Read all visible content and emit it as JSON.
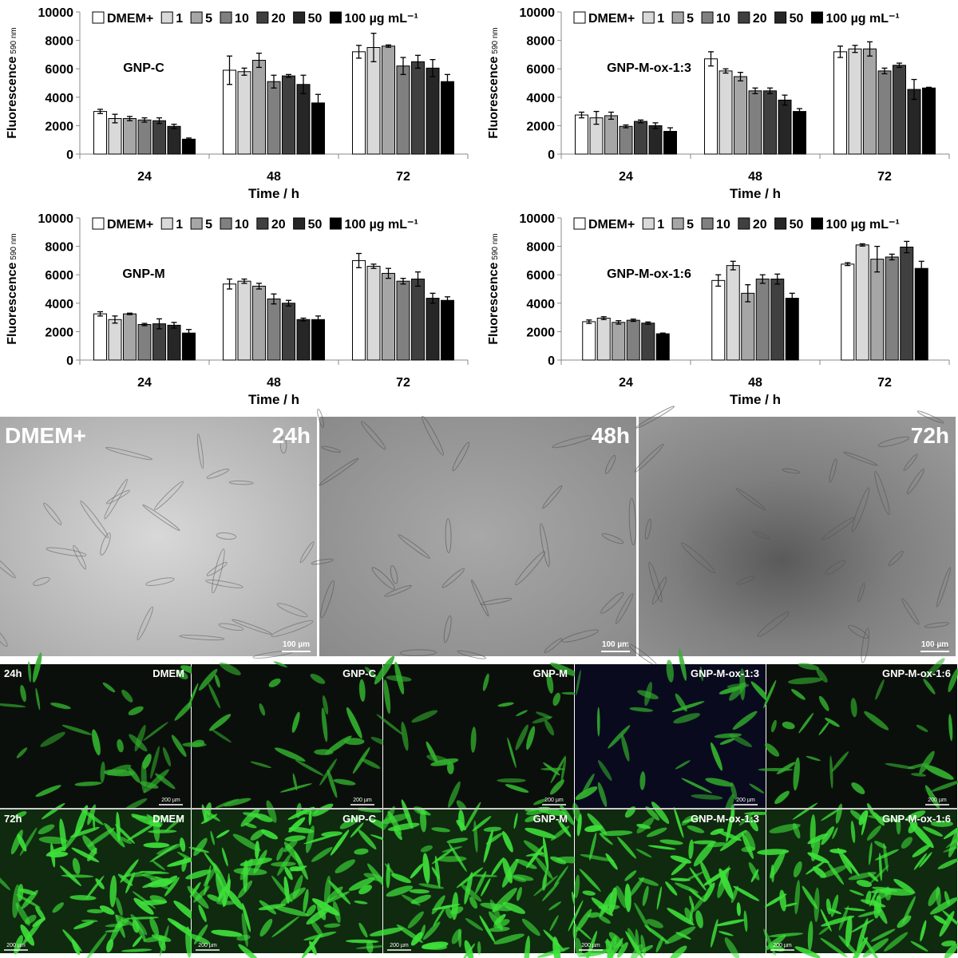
{
  "chart_data": [
    {
      "type": "bar",
      "annotation": "GNP-C",
      "xlabel": "Time / h",
      "ylabel": {
        "text": "Fluorescence",
        "subscript": "590 nm"
      },
      "categories": [
        "24",
        "48",
        "72"
      ],
      "ylim": [
        0,
        10000
      ],
      "yticks": [
        0,
        2000,
        4000,
        6000,
        8000,
        10000
      ],
      "series": [
        {
          "name": "DMEM+",
          "color": "#ffffff",
          "values": [
            3000,
            5900,
            7200
          ],
          "errors": [
            150,
            1000,
            450
          ]
        },
        {
          "name": "1",
          "color": "#d9d9d9",
          "values": [
            2500,
            5800,
            7500
          ],
          "errors": [
            300,
            250,
            1000
          ]
        },
        {
          "name": "5",
          "color": "#a6a6a6",
          "values": [
            2500,
            6600,
            7600
          ],
          "errors": [
            150,
            500,
            80
          ]
        },
        {
          "name": "10",
          "color": "#808080",
          "values": [
            2400,
            5100,
            6200
          ],
          "errors": [
            150,
            450,
            600
          ]
        },
        {
          "name": "20",
          "color": "#404040",
          "values": [
            2350,
            5500,
            6500
          ],
          "errors": [
            200,
            100,
            450
          ]
        },
        {
          "name": "50",
          "color": "#262626",
          "values": [
            1950,
            4900,
            6050
          ],
          "errors": [
            150,
            650,
            600
          ]
        },
        {
          "name": "100 µg mL⁻¹",
          "color": "#000000",
          "values": [
            1050,
            3600,
            5100
          ],
          "errors": [
            80,
            600,
            500
          ]
        }
      ]
    },
    {
      "type": "bar",
      "annotation": "GNP-M-ox-1:3",
      "xlabel": "Time / h",
      "ylabel": {
        "text": "Fluorescence",
        "subscript": "590 nm"
      },
      "categories": [
        "24",
        "48",
        "72"
      ],
      "ylim": [
        0,
        10000
      ],
      "yticks": [
        0,
        2000,
        4000,
        6000,
        8000,
        10000
      ],
      "series": [
        {
          "name": "DMEM+",
          "color": "#ffffff",
          "values": [
            2750,
            6700,
            7200
          ],
          "errors": [
            200,
            500,
            400
          ]
        },
        {
          "name": "1",
          "color": "#d9d9d9",
          "values": [
            2550,
            5850,
            7400
          ],
          "errors": [
            450,
            150,
            250
          ]
        },
        {
          "name": "5",
          "color": "#a6a6a6",
          "values": [
            2700,
            5450,
            7400
          ],
          "errors": [
            250,
            300,
            500
          ]
        },
        {
          "name": "10",
          "color": "#808080",
          "values": [
            1950,
            4450,
            5850
          ],
          "errors": [
            100,
            200,
            200
          ]
        },
        {
          "name": "20",
          "color": "#404040",
          "values": [
            2300,
            4450,
            6250
          ],
          "errors": [
            100,
            200,
            150
          ]
        },
        {
          "name": "50",
          "color": "#262626",
          "values": [
            2000,
            3800,
            4550
          ],
          "errors": [
            200,
            350,
            700
          ]
        },
        {
          "name": "100 µg mL⁻¹",
          "color": "#000000",
          "values": [
            1600,
            3000,
            4650
          ],
          "errors": [
            250,
            200,
            50
          ]
        }
      ]
    },
    {
      "type": "bar",
      "annotation": "GNP-M",
      "xlabel": "Time / h",
      "ylabel": {
        "text": "Fluorescence",
        "subscript": "590 nm"
      },
      "categories": [
        "24",
        "48",
        "72"
      ],
      "ylim": [
        0,
        10000
      ],
      "yticks": [
        0,
        2000,
        4000,
        6000,
        8000,
        10000
      ],
      "series": [
        {
          "name": "DMEM+",
          "color": "#ffffff",
          "values": [
            3250,
            5350,
            7000
          ],
          "errors": [
            150,
            350,
            500
          ]
        },
        {
          "name": "1",
          "color": "#d9d9d9",
          "values": [
            2850,
            5550,
            6600
          ],
          "errors": [
            250,
            150,
            150
          ]
        },
        {
          "name": "5",
          "color": "#a6a6a6",
          "values": [
            3250,
            5200,
            6100
          ],
          "errors": [
            50,
            200,
            350
          ]
        },
        {
          "name": "10",
          "color": "#808080",
          "values": [
            2500,
            4300,
            5550
          ],
          "errors": [
            80,
            350,
            200
          ]
        },
        {
          "name": "20",
          "color": "#404040",
          "values": [
            2550,
            4000,
            5700
          ],
          "errors": [
            350,
            200,
            500
          ]
        },
        {
          "name": "50",
          "color": "#262626",
          "values": [
            2450,
            2850,
            4350
          ],
          "errors": [
            200,
            100,
            350
          ]
        },
        {
          "name": "100 µg mL⁻¹",
          "color": "#000000",
          "values": [
            1900,
            2850,
            4200
          ],
          "errors": [
            250,
            250,
            250
          ]
        }
      ]
    },
    {
      "type": "bar",
      "annotation": "GNP-M-ox-1:6",
      "xlabel": "Time / h",
      "ylabel": {
        "text": "Fluorescence",
        "subscript": "590 nm"
      },
      "categories": [
        "24",
        "48",
        "72"
      ],
      "ylim": [
        0,
        10000
      ],
      "yticks": [
        0,
        2000,
        4000,
        6000,
        8000,
        10000
      ],
      "series": [
        {
          "name": "DMEM+",
          "color": "#ffffff",
          "values": [
            2700,
            5600,
            6750
          ],
          "errors": [
            120,
            400,
            100
          ]
        },
        {
          "name": "1",
          "color": "#d9d9d9",
          "values": [
            2950,
            6650,
            8100
          ],
          "errors": [
            100,
            300,
            80
          ]
        },
        {
          "name": "5",
          "color": "#a6a6a6",
          "values": [
            2650,
            4700,
            7100
          ],
          "errors": [
            120,
            600,
            900
          ]
        },
        {
          "name": "10",
          "color": "#808080",
          "values": [
            2800,
            5700,
            7250
          ],
          "errors": [
            80,
            300,
            200
          ]
        },
        {
          "name": "20",
          "color": "#404040",
          "values": [
            2600,
            5700,
            7950
          ],
          "errors": [
            80,
            350,
            400
          ]
        },
        {
          "name": "50",
          "color": "#262626",
          "values": [
            null,
            null,
            null
          ],
          "errors": [
            null,
            null,
            null
          ]
        },
        {
          "name": "100 µg mL⁻¹",
          "color": "#000000",
          "values": [
            1850,
            4350,
            6450
          ],
          "errors": [
            50,
            350,
            500
          ]
        }
      ]
    }
  ],
  "micrographs": [
    {
      "label": "DMEM+",
      "time": "24h",
      "scale": "100 µm"
    },
    {
      "time": "48h",
      "scale": "100 µm"
    },
    {
      "time": "72h",
      "scale": "100 µm"
    }
  ],
  "fluorescence": [
    {
      "time": "24h",
      "panels": [
        {
          "label": "DMEM",
          "scale": "200 µm"
        },
        {
          "label": "GNP-C",
          "scale": "200 µm"
        },
        {
          "label": "GNP-M",
          "scale": "200 µm"
        },
        {
          "label": "GNP-M-ox-1:3",
          "scale": "200 µm"
        },
        {
          "label": "GNP-M-ox-1:6",
          "scale": "200 µm"
        }
      ]
    },
    {
      "time": "72h",
      "panels": [
        {
          "label": "DMEM",
          "scale": "200 µm"
        },
        {
          "label": "GNP-C",
          "scale": "200 µm"
        },
        {
          "label": "GNP-M",
          "scale": "200 µm"
        },
        {
          "label": "GNP-M-ox-1:3",
          "scale": "200 µm"
        },
        {
          "label": "GNP-M-ox-1:6",
          "scale": "200 µm"
        }
      ]
    }
  ]
}
